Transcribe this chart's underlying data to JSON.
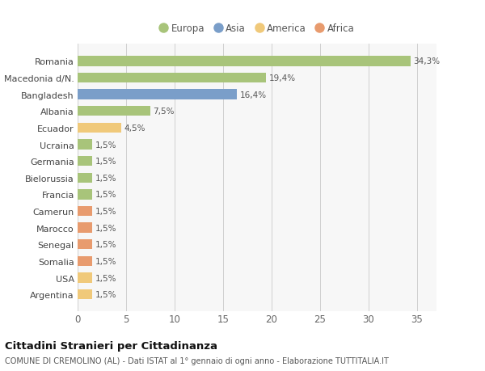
{
  "countries": [
    "Argentina",
    "USA",
    "Somalia",
    "Senegal",
    "Marocco",
    "Camerun",
    "Francia",
    "Bielorussia",
    "Germania",
    "Ucraina",
    "Ecuador",
    "Albania",
    "Bangladesh",
    "Macedonia d/N.",
    "Romania"
  ],
  "values": [
    1.5,
    1.5,
    1.5,
    1.5,
    1.5,
    1.5,
    1.5,
    1.5,
    1.5,
    1.5,
    4.5,
    7.5,
    16.4,
    19.4,
    34.3
  ],
  "labels": [
    "1,5%",
    "1,5%",
    "1,5%",
    "1,5%",
    "1,5%",
    "1,5%",
    "1,5%",
    "1,5%",
    "1,5%",
    "1,5%",
    "4,5%",
    "7,5%",
    "16,4%",
    "19,4%",
    "34,3%"
  ],
  "colors": [
    "#f0c97a",
    "#f0c97a",
    "#e89b6e",
    "#e89b6e",
    "#e89b6e",
    "#e89b6e",
    "#a8c47a",
    "#a8c47a",
    "#a8c47a",
    "#a8c47a",
    "#f0c97a",
    "#a8c47a",
    "#7a9ec9",
    "#a8c47a",
    "#a8c47a"
  ],
  "legend_labels": [
    "Europa",
    "Asia",
    "America",
    "Africa"
  ],
  "legend_colors": [
    "#a8c47a",
    "#7a9ec9",
    "#f0c97a",
    "#e89b6e"
  ],
  "title1": "Cittadini Stranieri per Cittadinanza",
  "title2": "COMUNE DI CREMOLINO (AL) - Dati ISTAT al 1° gennaio di ogni anno - Elaborazione TUTTITALIA.IT",
  "xlim_max": 37,
  "xticks": [
    0,
    5,
    10,
    15,
    20,
    25,
    30,
    35
  ],
  "background_color": "#ffffff",
  "plot_bg_color": "#f7f7f7",
  "grid_color": "#d0d0d0"
}
